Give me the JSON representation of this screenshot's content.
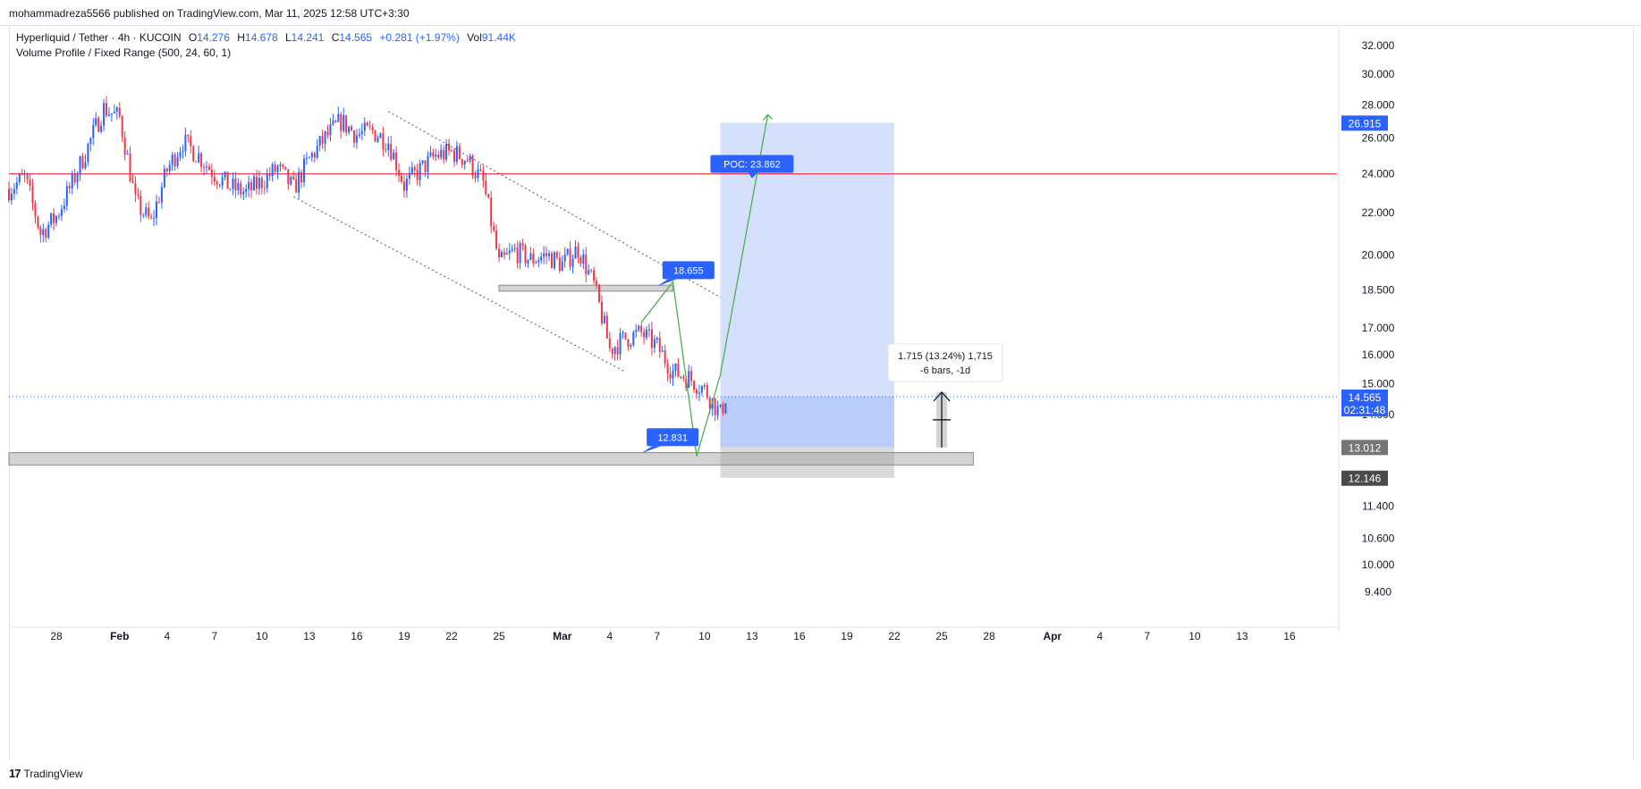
{
  "header": {
    "publish_line": "mohammadreza5566 published on TradingView.com, Mar 11, 2025 12:58 UTC+3:30"
  },
  "legend": {
    "symbol": "Hyperliquid / Tether · 4h · KUCOIN",
    "o_label": "O",
    "o_value": "14.276",
    "h_label": "H",
    "h_value": "14.678",
    "l_label": "L",
    "l_value": "14.241",
    "c_label": "C",
    "c_value": "14.565",
    "change": "+0.281 (+1.97%)",
    "vol_label": "Vol",
    "vol_value": "91.44K",
    "indicator": "Volume Profile / Fixed Range (500, 24, 60, 1)"
  },
  "footer": {
    "brand": "TradingView"
  },
  "colors": {
    "up": "#2962ff",
    "down": "#f23645",
    "resistance": "#f23645",
    "target_zone": "#c7d5fb",
    "stop_zone": "#d1d1d1",
    "path": "#4caf50",
    "label_bg": "#2962ff"
  },
  "chart_data": {
    "type": "candlestick",
    "symbol": "Hyperliquid / Tether",
    "timeframe": "4h",
    "exchange": "KUCOIN",
    "y_scale": "log",
    "ylim": [
      8.9,
      33.5
    ],
    "y_ticks": [
      9.4,
      10.0,
      10.6,
      11.4,
      14.0,
      15.0,
      16.0,
      17.0,
      18.5,
      20.0,
      22.0,
      24.0,
      26.0,
      28.0,
      30.0,
      32.0
    ],
    "y_tick_labels": [
      "9.400",
      "10.000",
      "10.600",
      "11.400",
      "14.000",
      "15.000",
      "16.000",
      "17.000",
      "18.500",
      "20.000",
      "22.000",
      "24.000",
      "26.000",
      "28.000",
      "30.000",
      "32.000"
    ],
    "x_start": "2025-01-25",
    "x_end": "2025-04-19",
    "x_tick_dates": [
      "2025-01-28",
      "2025-02-01",
      "2025-02-04",
      "2025-02-07",
      "2025-02-10",
      "2025-02-13",
      "2025-02-16",
      "2025-02-19",
      "2025-02-22",
      "2025-02-25",
      "2025-03-01",
      "2025-03-04",
      "2025-03-07",
      "2025-03-10",
      "2025-03-13",
      "2025-03-16",
      "2025-03-19",
      "2025-03-22",
      "2025-03-25",
      "2025-03-28",
      "2025-04-01",
      "2025-04-04",
      "2025-04-07",
      "2025-04-10",
      "2025-04-13",
      "2025-04-16"
    ],
    "x_tick_labels": [
      "28",
      "Feb",
      "4",
      "7",
      "10",
      "13",
      "16",
      "19",
      "22",
      "25",
      "Mar",
      "4",
      "7",
      "10",
      "13",
      "16",
      "19",
      "22",
      "25",
      "28",
      "Apr",
      "4",
      "7",
      "10",
      "13",
      "16"
    ],
    "price_path": [
      [
        "2025-01-25",
        23.2
      ],
      [
        "2025-01-26",
        23.8
      ],
      [
        "2025-01-27",
        21.0
      ],
      [
        "2025-01-28",
        21.8
      ],
      [
        "2025-01-29",
        23.5
      ],
      [
        "2025-01-30",
        25.5
      ],
      [
        "2025-01-31",
        27.8
      ],
      [
        "2025-02-01",
        27.2
      ],
      [
        "2025-02-02",
        22.5
      ],
      [
        "2025-02-03",
        21.5
      ],
      [
        "2025-02-04",
        24.2
      ],
      [
        "2025-02-05",
        25.8
      ],
      [
        "2025-02-06",
        25.0
      ],
      [
        "2025-02-07",
        24.0
      ],
      [
        "2025-02-08",
        23.3
      ],
      [
        "2025-02-09",
        23.0
      ],
      [
        "2025-02-10",
        23.6
      ],
      [
        "2025-02-11",
        24.3
      ],
      [
        "2025-02-12",
        23.2
      ],
      [
        "2025-02-13",
        24.8
      ],
      [
        "2025-02-14",
        26.0
      ],
      [
        "2025-02-15",
        27.0
      ],
      [
        "2025-02-16",
        26.2
      ],
      [
        "2025-02-17",
        26.4
      ],
      [
        "2025-02-18",
        25.8
      ],
      [
        "2025-02-19",
        23.4
      ],
      [
        "2025-02-20",
        24.2
      ],
      [
        "2025-02-21",
        25.0
      ],
      [
        "2025-02-22",
        25.2
      ],
      [
        "2025-02-23",
        24.8
      ],
      [
        "2025-02-24",
        23.5
      ],
      [
        "2025-02-25",
        19.6
      ],
      [
        "2025-02-26",
        20.2
      ],
      [
        "2025-02-27",
        19.8
      ],
      [
        "2025-02-28",
        20.0
      ],
      [
        "2025-03-01",
        19.6
      ],
      [
        "2025-03-02",
        20.3
      ],
      [
        "2025-03-03",
        18.7
      ],
      [
        "2025-03-04",
        16.2
      ],
      [
        "2025-03-05",
        16.6
      ],
      [
        "2025-03-06",
        16.8
      ],
      [
        "2025-03-07",
        16.3
      ],
      [
        "2025-03-08",
        15.4
      ],
      [
        "2025-03-09",
        15.2
      ],
      [
        "2025-03-10",
        14.8
      ],
      [
        "2025-03-11",
        14.0
      ],
      [
        "2025-03-11T08:00",
        14.565
      ]
    ],
    "current_price": 14.565,
    "countdown": "02:31:48",
    "resistance_line": 24.0,
    "channel_upper": [
      [
        "2025-02-18",
        27.6
      ],
      [
        "2025-03-11",
        18.2
      ]
    ],
    "channel_lower": [
      [
        "2025-02-12",
        22.8
      ],
      [
        "2025-03-05",
        15.4
      ]
    ],
    "zones": [
      {
        "name": "supply-flip",
        "from": "2025-02-25",
        "to": "2025-03-08",
        "low": 18.45,
        "high": 18.7
      },
      {
        "name": "support",
        "from": "2025-01-25",
        "to": "2025-03-27",
        "low": 12.5,
        "high": 12.85
      }
    ],
    "long_position": {
      "from": "2025-03-11",
      "to": "2025-03-22",
      "entry": 13.012,
      "target": 26.915,
      "stop": 12.146
    },
    "target_label": "26.915",
    "stop_label": "12.146",
    "entry_label": "13.012",
    "projected_path": [
      [
        "2025-03-06",
        17.2
      ],
      [
        "2025-03-08",
        18.85
      ],
      [
        "2025-03-09T12:00",
        12.75
      ],
      [
        "2025-03-11",
        15.3
      ],
      [
        "2025-03-14",
        27.4
      ]
    ],
    "annotations": [
      {
        "text": "18.655",
        "date": "2025-03-07",
        "value": 18.655
      },
      {
        "text": "12.831",
        "date": "2025-03-06",
        "value": 12.831
      },
      {
        "text": "POC: 23.862",
        "date": "2025-03-13",
        "value": 23.862
      }
    ],
    "measure": {
      "line1": "1.715 (13.24%) 1,715",
      "line2": "-6 bars, -1d",
      "date": "2025-03-25",
      "from_value": 13.0,
      "to_value": 14.715
    }
  }
}
